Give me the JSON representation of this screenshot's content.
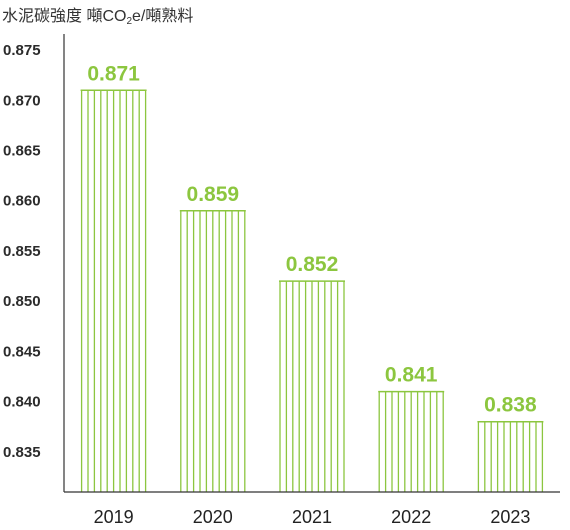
{
  "chart_data": {
    "type": "bar",
    "title": {
      "prefix": "水泥碳強度 噸CO",
      "subscript": "2",
      "suffix": "e/噸熟料"
    },
    "categories": [
      "2019",
      "2020",
      "2021",
      "2022",
      "2023"
    ],
    "values": [
      0.871,
      0.859,
      0.852,
      0.841,
      0.838
    ],
    "data_labels": [
      "0.871",
      "0.859",
      "0.852",
      "0.841",
      "0.838"
    ],
    "ylim": [
      0.831,
      0.877
    ],
    "y_ticks": [
      "0.875",
      "0.870",
      "0.865",
      "0.860",
      "0.855",
      "0.850",
      "0.845",
      "0.840",
      "0.835"
    ],
    "xlabel": "",
    "ylabel": "",
    "grid": false,
    "legend": "none",
    "bar_style": "vertical-hatched",
    "colors": {
      "bar": "#8cc63f",
      "label": "#8cc63f",
      "axis": "#333333"
    }
  }
}
